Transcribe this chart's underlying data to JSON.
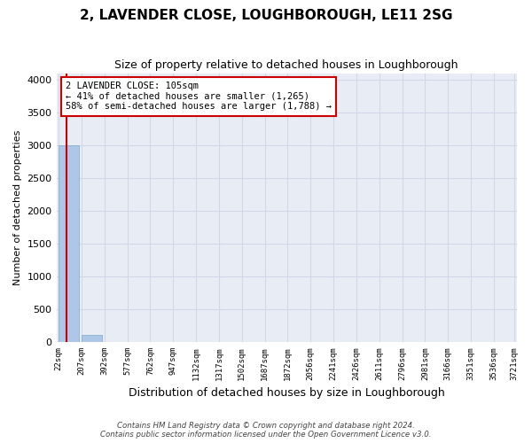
{
  "title": "2, LAVENDER CLOSE, LOUGHBOROUGH, LE11 2SG",
  "subtitle": "Size of property relative to detached houses in Loughborough",
  "xlabel": "Distribution of detached houses by size in Loughborough",
  "ylabel": "Number of detached properties",
  "bin_labels": [
    "22sqm",
    "207sqm",
    "392sqm",
    "577sqm",
    "762sqm",
    "947sqm",
    "1132sqm",
    "1317sqm",
    "1502sqm",
    "1687sqm",
    "1872sqm",
    "2056sqm",
    "2241sqm",
    "2426sqm",
    "2611sqm",
    "2796sqm",
    "2981sqm",
    "3166sqm",
    "3351sqm",
    "3536sqm",
    "3721sqm"
  ],
  "bar_heights": [
    3000,
    110,
    0,
    0,
    0,
    0,
    0,
    0,
    0,
    0,
    0,
    0,
    0,
    0,
    0,
    0,
    0,
    0,
    0,
    0
  ],
  "bar_color": "#aec6e8",
  "bar_edge_color": "#7aaac8",
  "annotation_title": "2 LAVENDER CLOSE: 105sqm",
  "annotation_line1": "← 41% of detached houses are smaller (1,265)",
  "annotation_line2": "58% of semi-detached houses are larger (1,788) →",
  "annotation_box_color": "#ffffff",
  "annotation_border_color": "#cc0000",
  "red_line_color": "#cc0000",
  "ylim": [
    0,
    4100
  ],
  "yticks": [
    0,
    500,
    1000,
    1500,
    2000,
    2500,
    3000,
    3500,
    4000
  ],
  "grid_color": "#d0d8e8",
  "bg_color": "#e8edf5",
  "footer_line1": "Contains HM Land Registry data © Crown copyright and database right 2024.",
  "footer_line2": "Contains public sector information licensed under the Open Government Licence v3.0."
}
